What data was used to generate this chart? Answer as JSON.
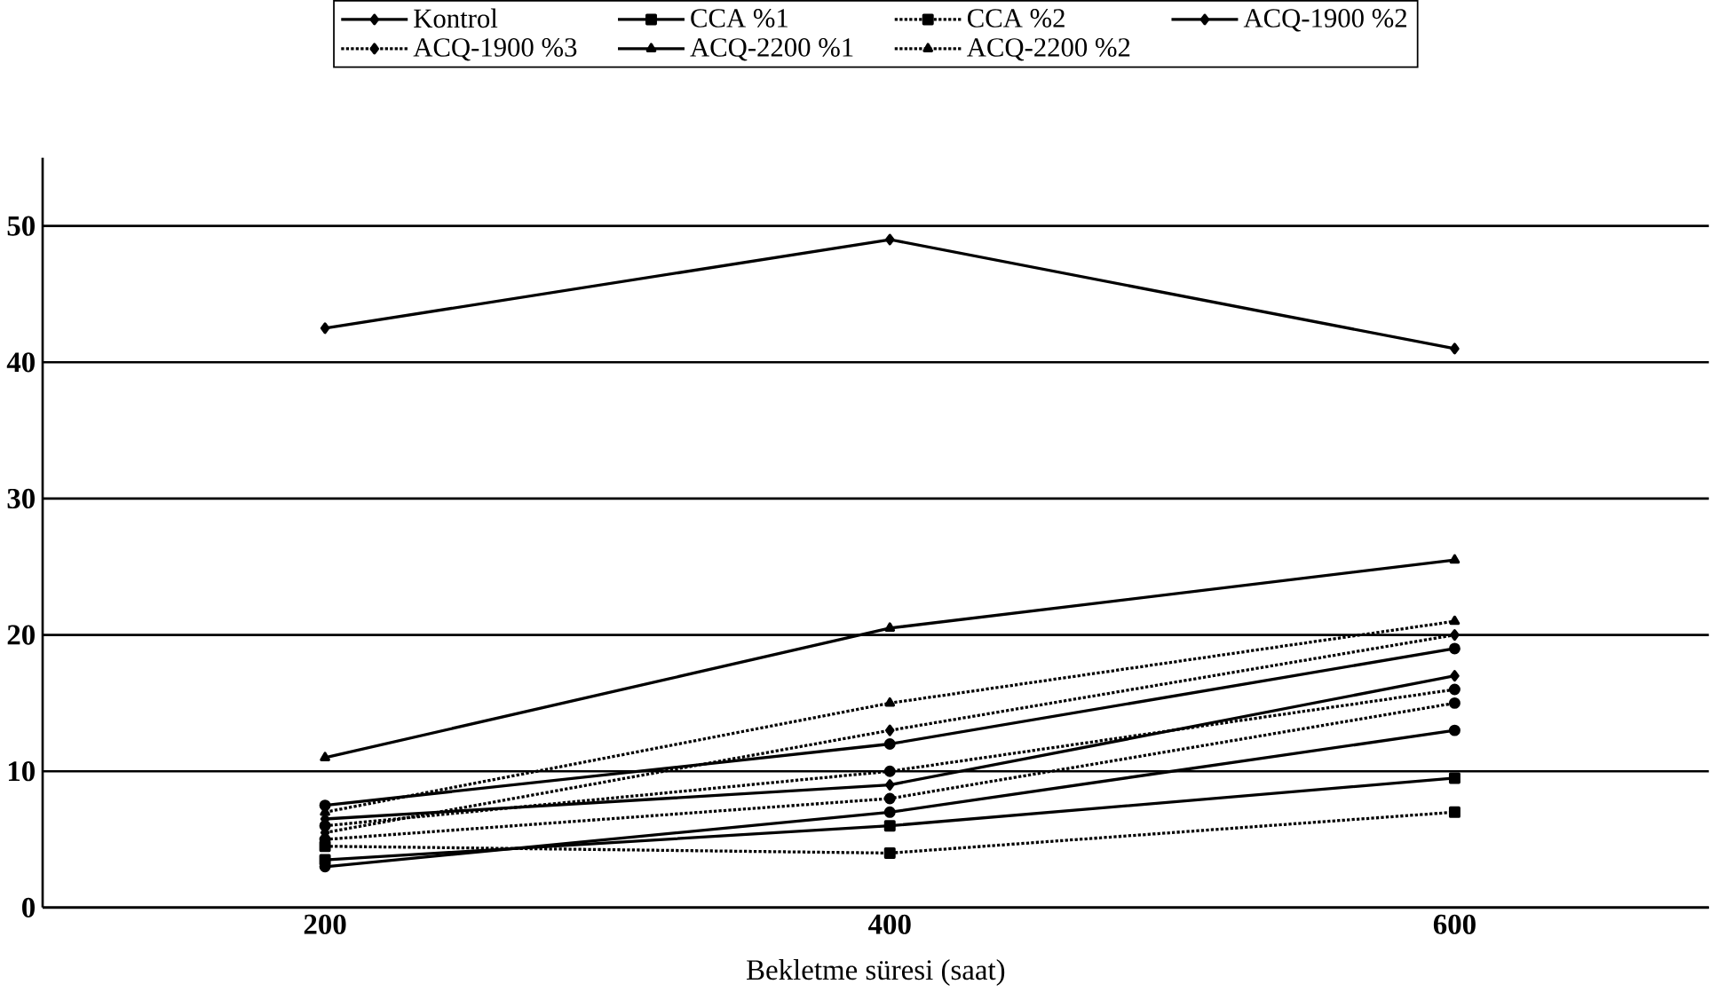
{
  "chart_data": {
    "type": "line",
    "xlabel": "Bekletme süresi (saat)",
    "categories": [
      "200",
      "400",
      "600"
    ],
    "ylim": [
      0,
      55
    ],
    "yticks": [
      0,
      10,
      20,
      30,
      40,
      50
    ],
    "grid": "y",
    "legend": "top",
    "series": [
      {
        "name": "Kontrol",
        "color": "#000000",
        "marker": "diamond",
        "line_style": "solid",
        "values": [
          42.5,
          49,
          41
        ]
      },
      {
        "name": "CCA %1",
        "color": "#000000",
        "marker": "square",
        "line_style": "solid",
        "values": [
          3.5,
          6,
          9.5
        ]
      },
      {
        "name": "CCA %2",
        "color": "#000000",
        "marker": "square",
        "line_style": "dotted",
        "values": [
          4.5,
          4,
          7
        ]
      },
      {
        "name": "ACQ-1900 %2",
        "color": "#000000",
        "marker": "diamond",
        "line_style": "solid",
        "values": [
          6.5,
          9,
          17
        ]
      },
      {
        "name": "ACQ-1900 %3",
        "color": "#000000",
        "marker": "diamond",
        "line_style": "dotted",
        "values": [
          5.5,
          13,
          20
        ]
      },
      {
        "name": "ACQ-2200 %1",
        "color": "#000000",
        "marker": "triangle",
        "line_style": "solid",
        "values": [
          11,
          20.5,
          25.5
        ]
      },
      {
        "name": "ACQ-2200 %2",
        "color": "#000000",
        "marker": "triangle",
        "line_style": "dotted",
        "values": [
          7,
          15,
          21
        ]
      },
      {
        "color": "#000000",
        "marker": "circle",
        "line_style": "solid",
        "values": [
          7.5,
          12,
          19
        ]
      },
      {
        "color": "#000000",
        "marker": "circle",
        "line_style": "dotted",
        "values": [
          5,
          8,
          15
        ]
      },
      {
        "color": "#000000",
        "marker": "circle",
        "line_style": "solid",
        "values": [
          3,
          7,
          13
        ]
      },
      {
        "color": "#000000",
        "marker": "circle",
        "line_style": "dotted",
        "values": [
          6,
          10,
          16
        ]
      }
    ]
  }
}
